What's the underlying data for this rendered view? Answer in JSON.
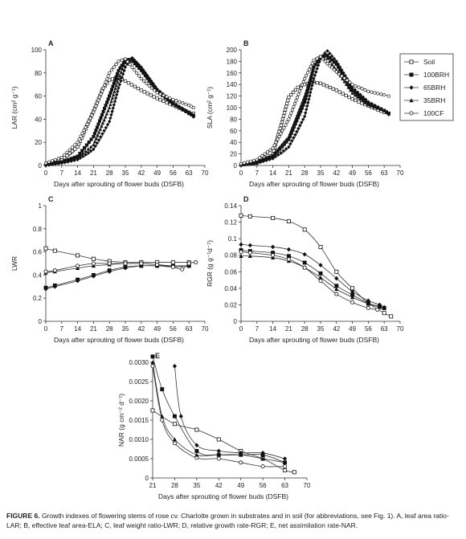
{
  "caption": {
    "label": "FIGURE 6.",
    "text": "Growth indexes of flowering stems of rose cv. Charlotte grown in substrates and in soil (for abbreviations, see Fig. 1). A, leaf area ratio-LAR; B, effective leaf area-ELA; C, leaf weight ratio-LWR; D, relative growth rate-RGR; E, net assimilation rate-NAR."
  },
  "legend": [
    {
      "name": "Soil",
      "marker": "open-square"
    },
    {
      "name": "100BRH",
      "marker": "filled-square"
    },
    {
      "name": "65BRH",
      "marker": "filled-diamond"
    },
    {
      "name": "35BRH",
      "marker": "filled-triangle"
    },
    {
      "name": "100CF",
      "marker": "open-circle"
    }
  ],
  "chart_data": [
    {
      "panel": "A",
      "type": "line",
      "ylabel": "LAR (cm² g⁻¹)",
      "xlabel": "Days after sprouting of flower buds (DSFB)",
      "xlim": [
        0,
        70
      ],
      "ylim": [
        0,
        100
      ],
      "xticks": [
        0,
        7,
        14,
        21,
        28,
        35,
        42,
        49,
        56,
        63,
        70
      ],
      "yticks": [
        0,
        20,
        40,
        60,
        80,
        100
      ],
      "series": [
        {
          "name": "Soil",
          "x": [
            0,
            7,
            14,
            21,
            25,
            28,
            32,
            35,
            42,
            49,
            56,
            63,
            65
          ],
          "y": [
            1,
            5,
            16,
            47,
            66,
            74,
            76,
            73,
            65,
            58,
            52,
            46,
            45
          ]
        },
        {
          "name": "100BRH",
          "x": [
            0,
            7,
            14,
            21,
            28,
            32,
            35,
            38,
            42,
            49,
            56,
            63,
            65
          ],
          "y": [
            1,
            3,
            8,
            25,
            60,
            82,
            91,
            92,
            83,
            65,
            54,
            45,
            43
          ]
        },
        {
          "name": "65BRH",
          "x": [
            0,
            7,
            14,
            21,
            28,
            32,
            35,
            38,
            42,
            49,
            56,
            63,
            65
          ],
          "y": [
            0,
            2,
            5,
            14,
            38,
            67,
            85,
            93,
            85,
            66,
            54,
            46,
            42
          ]
        },
        {
          "name": "35BRH",
          "x": [
            0,
            7,
            14,
            21,
            28,
            32,
            35,
            38,
            42,
            49,
            56,
            63,
            65
          ],
          "y": [
            1,
            3,
            7,
            18,
            50,
            75,
            89,
            90,
            82,
            64,
            53,
            46,
            44
          ]
        },
        {
          "name": "100CF",
          "x": [
            0,
            7,
            14,
            21,
            28,
            32,
            35,
            38,
            42,
            49,
            56,
            63,
            65
          ],
          "y": [
            2,
            7,
            20,
            46,
            80,
            90,
            92,
            85,
            75,
            63,
            57,
            52,
            50
          ]
        }
      ]
    },
    {
      "panel": "B",
      "type": "line",
      "ylabel": "SLA (cm² g⁻¹)",
      "xlabel": "Days after sprouting of flower buds (DSFB)",
      "xlim": [
        0,
        70
      ],
      "ylim": [
        0,
        200
      ],
      "xticks": [
        0,
        7,
        14,
        21,
        28,
        35,
        42,
        49,
        56,
        63,
        70
      ],
      "yticks": [
        0,
        20,
        40,
        60,
        80,
        100,
        120,
        140,
        160,
        180,
        200
      ],
      "series": [
        {
          "name": "Soil",
          "x": [
            0,
            7,
            14,
            18,
            21,
            25,
            28,
            32,
            35,
            42,
            49,
            56,
            63,
            65
          ],
          "y": [
            1,
            4,
            20,
            75,
            118,
            135,
            140,
            144,
            142,
            130,
            115,
            103,
            92,
            90
          ]
        },
        {
          "name": "100BRH",
          "x": [
            0,
            7,
            14,
            21,
            28,
            32,
            35,
            38,
            42,
            49,
            56,
            63,
            65
          ],
          "y": [
            2,
            6,
            16,
            45,
            110,
            170,
            188,
            190,
            175,
            130,
            108,
            95,
            90
          ]
        },
        {
          "name": "65BRH",
          "x": [
            0,
            7,
            14,
            21,
            28,
            32,
            35,
            38,
            42,
            49,
            56,
            63,
            65
          ],
          "y": [
            1,
            4,
            12,
            32,
            85,
            150,
            185,
            198,
            180,
            135,
            110,
            95,
            88
          ]
        },
        {
          "name": "35BRH",
          "x": [
            0,
            7,
            14,
            21,
            28,
            32,
            35,
            38,
            42,
            49,
            56,
            63,
            65
          ],
          "y": [
            2,
            6,
            18,
            50,
            120,
            170,
            185,
            185,
            165,
            125,
            105,
            95,
            90
          ]
        },
        {
          "name": "100CF",
          "x": [
            0,
            7,
            14,
            21,
            28,
            32,
            35,
            38,
            42,
            49,
            56,
            63,
            65
          ],
          "y": [
            3,
            10,
            30,
            80,
            150,
            182,
            188,
            176,
            162,
            140,
            128,
            122,
            120
          ]
        }
      ]
    },
    {
      "panel": "C",
      "type": "line",
      "ylabel": "LWR",
      "xlabel": "Days after sprouting of flower buds (DSFB)",
      "xlim": [
        0,
        70
      ],
      "ylim": [
        0,
        1.0
      ],
      "xticks": [
        0,
        7,
        14,
        21,
        28,
        35,
        42,
        49,
        56,
        63,
        70
      ],
      "yticks": [
        0,
        0.2,
        0.4,
        0.6,
        0.8,
        1.0
      ],
      "series": [
        {
          "name": "Soil",
          "x": [
            0,
            4,
            14,
            21,
            28,
            35,
            42,
            49,
            56,
            63
          ],
          "y": [
            0.63,
            0.61,
            0.57,
            0.54,
            0.52,
            0.51,
            0.51,
            0.51,
            0.51,
            0.51
          ]
        },
        {
          "name": "100BRH",
          "x": [
            0,
            4,
            14,
            21,
            28,
            35,
            42,
            49,
            56,
            63
          ],
          "y": [
            0.29,
            0.31,
            0.36,
            0.4,
            0.44,
            0.47,
            0.48,
            0.48,
            0.48,
            0.48
          ]
        },
        {
          "name": "65BRH",
          "x": [
            0,
            4,
            14,
            21,
            28,
            35,
            42,
            49,
            56,
            63
          ],
          "y": [
            0.28,
            0.3,
            0.35,
            0.39,
            0.43,
            0.46,
            0.48,
            0.48,
            0.47,
            0.48
          ]
        },
        {
          "name": "35BRH",
          "x": [
            0,
            4,
            14,
            21,
            28,
            35,
            42,
            49,
            56,
            63
          ],
          "y": [
            0.42,
            0.43,
            0.46,
            0.48,
            0.49,
            0.5,
            0.5,
            0.49,
            0.48,
            0.48
          ]
        },
        {
          "name": "100CF",
          "x": [
            0,
            4,
            14,
            21,
            28,
            35,
            42,
            49,
            56,
            60,
            63,
            66
          ],
          "y": [
            0.43,
            0.44,
            0.48,
            0.5,
            0.5,
            0.5,
            0.5,
            0.49,
            0.47,
            0.45,
            0.5,
            0.51
          ]
        }
      ]
    },
    {
      "panel": "D",
      "type": "line",
      "ylabel": "RGR (g g⁻¹d⁻¹)",
      "xlabel": "Days after sprouting of flower buds (DSFB)",
      "xlim": [
        0,
        70
      ],
      "ylim": [
        0,
        0.14
      ],
      "xticks": [
        0,
        7,
        14,
        21,
        28,
        35,
        42,
        49,
        56,
        63,
        70
      ],
      "yticks": [
        0,
        0.02,
        0.04,
        0.06,
        0.08,
        0.1,
        0.12,
        0.14
      ],
      "series": [
        {
          "name": "Soil",
          "x": [
            0,
            4,
            14,
            21,
            28,
            35,
            42,
            49,
            56,
            63,
            66
          ],
          "y": [
            0.128,
            0.127,
            0.125,
            0.121,
            0.111,
            0.09,
            0.06,
            0.04,
            0.022,
            0.01,
            0.006
          ]
        },
        {
          "name": "100BRH",
          "x": [
            0,
            4,
            14,
            21,
            28,
            35,
            42,
            49,
            56,
            61,
            63
          ],
          "y": [
            0.086,
            0.085,
            0.083,
            0.079,
            0.071,
            0.058,
            0.043,
            0.032,
            0.022,
            0.018,
            0.016
          ]
        },
        {
          "name": "65BRH",
          "x": [
            0,
            4,
            14,
            21,
            28,
            35,
            42,
            49,
            56,
            61,
            63
          ],
          "y": [
            0.093,
            0.092,
            0.09,
            0.087,
            0.081,
            0.068,
            0.052,
            0.036,
            0.025,
            0.02,
            0.017
          ]
        },
        {
          "name": "35BRH",
          "x": [
            0,
            4,
            14,
            21,
            28,
            35,
            42,
            49,
            56,
            61
          ],
          "y": [
            0.079,
            0.079,
            0.077,
            0.073,
            0.065,
            0.053,
            0.039,
            0.029,
            0.021,
            0.017
          ]
        },
        {
          "name": "100CF",
          "x": [
            0,
            4,
            14,
            21,
            28,
            35,
            42,
            49,
            56,
            60
          ],
          "y": [
            0.084,
            0.083,
            0.08,
            0.075,
            0.065,
            0.049,
            0.033,
            0.023,
            0.016,
            0.014
          ]
        }
      ]
    },
    {
      "panel": "E",
      "type": "line",
      "ylabel": "NAR (g cm⁻² d⁻¹)",
      "xlabel": "Days after sprouting of flower buds (DSFB)",
      "xlim": [
        21,
        70
      ],
      "ylim": [
        0,
        0.003
      ],
      "xticks": [
        21,
        28,
        35,
        42,
        49,
        56,
        63,
        70
      ],
      "yticks": [
        0,
        0.0005,
        0.001,
        0.0015,
        0.002,
        0.0025,
        0.003
      ],
      "yticklabels": [
        "0",
        "0.0005",
        "0.0010",
        "0.0015",
        "0.0020",
        "0.0025",
        "0.0030"
      ],
      "series": [
        {
          "name": "Soil",
          "x": [
            21,
            28,
            35,
            42,
            49,
            56,
            63,
            66
          ],
          "y": [
            0.00175,
            0.0014,
            0.00125,
            0.001,
            0.0007,
            0.0005,
            0.0002,
            0.00015
          ]
        },
        {
          "name": "100BRH",
          "x": [
            21,
            24,
            28,
            35,
            42,
            49,
            56,
            63
          ],
          "y": [
            0.00315,
            0.0023,
            0.0016,
            0.0007,
            0.0006,
            0.0006,
            0.0006,
            0.0004
          ]
        },
        {
          "name": "65BRH",
          "x": [
            28,
            30,
            35,
            42,
            49,
            56,
            63
          ],
          "y": [
            0.0029,
            0.0016,
            0.00085,
            0.0007,
            0.00065,
            0.00065,
            0.0005
          ]
        },
        {
          "name": "35BRH",
          "x": [
            21,
            24,
            28,
            35,
            42,
            49,
            56,
            63
          ],
          "y": [
            0.003,
            0.0016,
            0.001,
            0.0006,
            0.0006,
            0.0006,
            0.0005,
            0.0004
          ]
        },
        {
          "name": "100CF",
          "x": [
            21,
            24,
            28,
            35,
            42,
            49,
            56,
            63
          ],
          "y": [
            0.0029,
            0.0015,
            0.0009,
            0.00052,
            0.0005,
            0.0004,
            0.0003,
            0.0003
          ]
        }
      ]
    }
  ]
}
